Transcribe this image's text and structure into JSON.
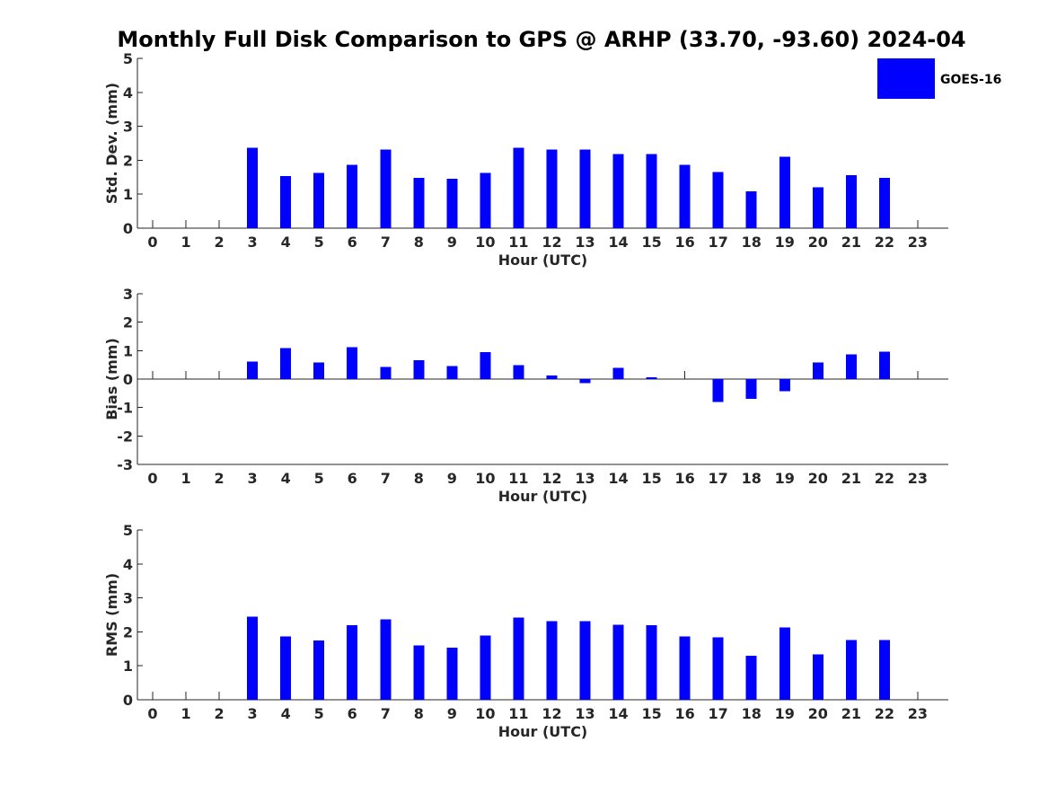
{
  "chart_data": {
    "title": "Monthly Full Disk Comparison to GPS @ ARHP (33.70, -93.60) 2024-04",
    "legend": {
      "position": "top-right",
      "entries": [
        {
          "label": "GOES-16",
          "color": "#0000ff"
        }
      ]
    },
    "series_color": "#0000ff",
    "panels": [
      {
        "type": "bar",
        "xlabel": "Hour (UTC)",
        "ylabel": "Std. Dev. (mm)",
        "ylim": [
          0,
          5
        ],
        "yticks": [
          "0",
          "1",
          "2",
          "3",
          "4",
          "5"
        ],
        "categories": [
          "0",
          "1",
          "2",
          "3",
          "4",
          "5",
          "6",
          "7",
          "8",
          "9",
          "10",
          "11",
          "12",
          "13",
          "14",
          "15",
          "16",
          "17",
          "18",
          "19",
          "20",
          "21",
          "22",
          "23"
        ],
        "values": [
          null,
          null,
          null,
          2.37,
          1.53,
          1.63,
          1.87,
          2.32,
          1.48,
          1.45,
          1.63,
          2.37,
          2.32,
          2.32,
          2.18,
          2.18,
          1.87,
          1.66,
          1.08,
          2.1,
          1.21,
          1.56,
          1.48,
          null
        ]
      },
      {
        "type": "bar",
        "xlabel": "Hour (UTC)",
        "ylabel": "Bias (mm)",
        "ylim": [
          -3,
          3
        ],
        "yticks": [
          "-3",
          "-2",
          "-1",
          "0",
          "1",
          "2",
          "3"
        ],
        "categories": [
          "0",
          "1",
          "2",
          "3",
          "4",
          "5",
          "6",
          "7",
          "8",
          "9",
          "10",
          "11",
          "12",
          "13",
          "14",
          "15",
          "16",
          "17",
          "18",
          "19",
          "20",
          "21",
          "22",
          "23"
        ],
        "values": [
          null,
          null,
          null,
          0.62,
          1.09,
          0.59,
          1.12,
          0.43,
          0.66,
          0.46,
          0.94,
          0.49,
          0.12,
          -0.14,
          0.4,
          0.06,
          null,
          -0.8,
          -0.7,
          -0.42,
          0.59,
          0.87,
          0.97,
          null
        ]
      },
      {
        "type": "bar",
        "xlabel": "Hour (UTC)",
        "ylabel": "RMS (mm)",
        "ylim": [
          0,
          5
        ],
        "yticks": [
          "0",
          "1",
          "2",
          "3",
          "4",
          "5"
        ],
        "categories": [
          "0",
          "1",
          "2",
          "3",
          "4",
          "5",
          "6",
          "7",
          "8",
          "9",
          "10",
          "11",
          "12",
          "13",
          "14",
          "15",
          "16",
          "17",
          "18",
          "19",
          "20",
          "21",
          "22",
          "23"
        ],
        "values": [
          null,
          null,
          null,
          2.45,
          1.87,
          1.74,
          2.19,
          2.37,
          1.6,
          1.53,
          1.89,
          2.42,
          2.32,
          2.32,
          2.21,
          2.19,
          1.87,
          1.84,
          1.29,
          2.13,
          1.34,
          1.76,
          1.76,
          null
        ]
      }
    ]
  }
}
